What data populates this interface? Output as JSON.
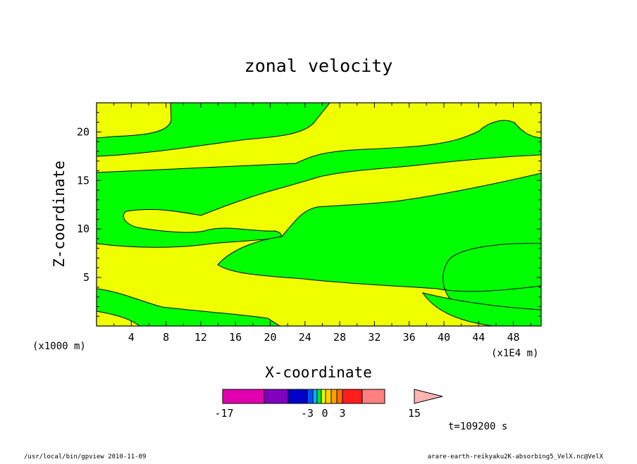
{
  "chart_data": {
    "type": "contour",
    "title": "zonal velocity",
    "xlabel": "X-coordinate",
    "ylabel": "Z-coordinate",
    "x_unit": "(x1E4 m)",
    "y_unit": "(x1000 m)",
    "xlim": [
      0,
      51.2
    ],
    "ylim": [
      0,
      23
    ],
    "xticks": [
      "4",
      "8",
      "12",
      "16",
      "20",
      "24",
      "28",
      "32",
      "36",
      "40",
      "44",
      "48"
    ],
    "yticks": [
      "5",
      "10",
      "15",
      "20"
    ],
    "time_label": "t=109200 s",
    "colorbar": {
      "labels": [
        "-17",
        "-3",
        "0",
        "3",
        "15"
      ],
      "colors": [
        "#e000b0",
        "#8000c0",
        "#0000c8",
        "#0050ff",
        "#00b4ff",
        "#00e632",
        "#f0ff00",
        "#ffd200",
        "#ffa000",
        "#ff6e00",
        "#ff1e1e",
        "#ff8080",
        "#ffb4b4"
      ]
    },
    "region_colors": {
      "negative": "#00ff00",
      "positive": "#f0ff00"
    }
  },
  "footer": {
    "left": "/usr/local/bin/gpview   2010-11-09",
    "right": "arare-earth-reikyaku2K-absorbing5_VelX.nc@VelX"
  }
}
